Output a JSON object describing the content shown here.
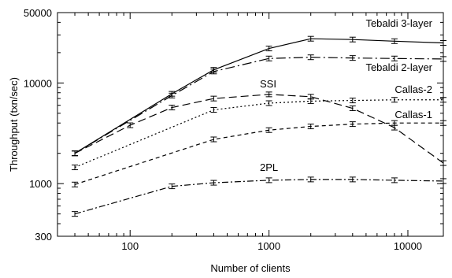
{
  "chart_data": {
    "type": "line",
    "xlabel": "Number of clients",
    "ylabel": "Throughput (txn/sec)",
    "xscale": "log",
    "yscale": "log",
    "xlim": [
      30,
      18000
    ],
    "ylim": [
      300,
      50000
    ],
    "x_ticks": [
      {
        "value": 100,
        "label": "100"
      },
      {
        "value": 1000,
        "label": "1000"
      },
      {
        "value": 10000,
        "label": "10000"
      }
    ],
    "y_ticks": [
      {
        "value": 300,
        "label": "300"
      },
      {
        "value": 1000,
        "label": "1000"
      },
      {
        "value": 10000,
        "label": "10000"
      },
      {
        "value": 50000,
        "label": "50000"
      }
    ],
    "grid": false,
    "legend": "none",
    "series": [
      {
        "name": "Tebaldi 3-layer",
        "dash": "solid",
        "x": [
          40,
          200,
          400,
          1000,
          2000,
          4000,
          8000,
          18000
        ],
        "y": [
          2000,
          7800,
          13500,
          22000,
          27500,
          27000,
          26000,
          25000
        ]
      },
      {
        "name": "Tebaldi 2-layer",
        "dash": "longdashdot",
        "x": [
          40,
          200,
          400,
          1000,
          2000,
          4000,
          8000,
          18000
        ],
        "y": [
          2000,
          7500,
          13000,
          17500,
          18000,
          17700,
          17500,
          17300
        ]
      },
      {
        "name": "SSI",
        "dash": "longdash",
        "x": [
          40,
          100,
          200,
          400,
          1000,
          2000,
          4000,
          8000,
          18000
        ],
        "y": [
          2000,
          3800,
          5700,
          7000,
          7700,
          7300,
          5600,
          3600,
          1600
        ]
      },
      {
        "name": "Callas-2",
        "dash": "dotted",
        "x": [
          40,
          400,
          1000,
          2000,
          4000,
          8000,
          18000
        ],
        "y": [
          1450,
          5400,
          6300,
          6600,
          6700,
          6800,
          6800
        ]
      },
      {
        "name": "Callas-1",
        "dash": "dashed",
        "x": [
          40,
          400,
          1000,
          2000,
          4000,
          8000,
          18000
        ],
        "y": [
          980,
          2750,
          3400,
          3700,
          3900,
          4000,
          4000
        ]
      },
      {
        "name": "2PL",
        "dash": "dashdot",
        "x": [
          40,
          200,
          400,
          1000,
          2000,
          4000,
          8000,
          18000
        ],
        "y": [
          500,
          940,
          1020,
          1080,
          1100,
          1100,
          1080,
          1060
        ]
      }
    ]
  }
}
